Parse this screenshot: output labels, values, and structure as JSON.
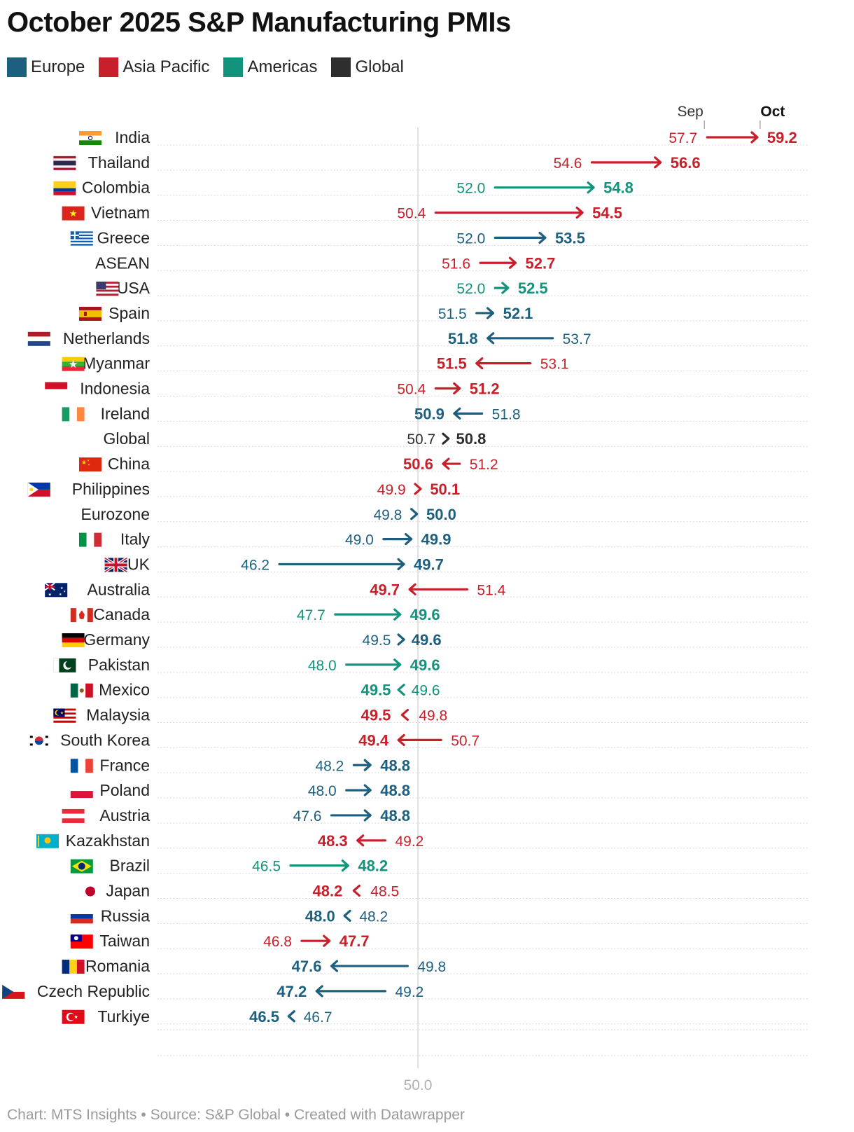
{
  "title": "October 2025 S&P Manufacturing PMIs",
  "footer": "Chart: MTS Insights • Source: S&P Global • Created with Datawrapper",
  "legend": [
    {
      "label": "Europe",
      "color": "#1d5f7e"
    },
    {
      "label": "Asia Pacific",
      "color": "#c8202a"
    },
    {
      "label": "Americas",
      "color": "#13927c"
    },
    {
      "label": "Global",
      "color": "#2e2e2e"
    }
  ],
  "chart_data": {
    "type": "arrow-plot",
    "title": "October 2025 S&P Manufacturing PMIs",
    "start_label": "Sep",
    "end_label": "Oct",
    "reference_line": 50.0,
    "reference_label": "50.0",
    "xlim": [
      43.0,
      60.5
    ],
    "rows": [
      {
        "name": "India",
        "region": "Asia Pacific",
        "flag": "india-flag",
        "sep": 57.7,
        "oct": 59.2,
        "sep_label": "57.7",
        "oct_label": "59.2"
      },
      {
        "name": "Thailand",
        "region": "Asia Pacific",
        "flag": "thailand-flag",
        "sep": 54.6,
        "oct": 56.6,
        "sep_label": "54.6",
        "oct_label": "56.6"
      },
      {
        "name": "Colombia",
        "region": "Americas",
        "flag": "colombia-flag",
        "sep": 52.0,
        "oct": 54.8,
        "sep_label": "52.0",
        "oct_label": "54.8"
      },
      {
        "name": "Vietnam",
        "region": "Asia Pacific",
        "flag": "vietnam-flag",
        "sep": 50.4,
        "oct": 54.5,
        "sep_label": "50.4",
        "oct_label": "54.5"
      },
      {
        "name": "Greece",
        "region": "Europe",
        "flag": "greece-flag",
        "sep": 52.0,
        "oct": 53.5,
        "sep_label": "52.0",
        "oct_label": "53.5"
      },
      {
        "name": "ASEAN",
        "region": "Asia Pacific",
        "flag": "",
        "sep": 51.6,
        "oct": 52.7,
        "sep_label": "51.6",
        "oct_label": "52.7"
      },
      {
        "name": "USA",
        "region": "Americas",
        "flag": "usa-flag",
        "sep": 52.0,
        "oct": 52.5,
        "sep_label": "52.0",
        "oct_label": "52.5"
      },
      {
        "name": "Spain",
        "region": "Europe",
        "flag": "spain-flag",
        "sep": 51.5,
        "oct": 52.1,
        "sep_label": "51.5",
        "oct_label": "52.1"
      },
      {
        "name": "Netherlands",
        "region": "Europe",
        "flag": "netherlands-flag",
        "sep": 53.7,
        "oct": 51.8,
        "sep_label": "53.7",
        "oct_label": "51.8"
      },
      {
        "name": "Myanmar",
        "region": "Asia Pacific",
        "flag": "myanmar-flag",
        "sep": 53.1,
        "oct": 51.5,
        "sep_label": "53.1",
        "oct_label": "51.5"
      },
      {
        "name": "Indonesia",
        "region": "Asia Pacific",
        "flag": "indonesia-flag",
        "sep": 50.4,
        "oct": 51.2,
        "sep_label": "50.4",
        "oct_label": "51.2"
      },
      {
        "name": "Ireland",
        "region": "Europe",
        "flag": "ireland-flag",
        "sep": 51.8,
        "oct": 50.9,
        "sep_label": "51.8",
        "oct_label": "50.9"
      },
      {
        "name": "Global",
        "region": "Global",
        "flag": "",
        "sep": 50.7,
        "oct": 50.8,
        "sep_label": "50.7",
        "oct_label": "50.8"
      },
      {
        "name": "China",
        "region": "Asia Pacific",
        "flag": "china-flag",
        "sep": 51.2,
        "oct": 50.6,
        "sep_label": "51.2",
        "oct_label": "50.6"
      },
      {
        "name": "Philippines",
        "region": "Asia Pacific",
        "flag": "philippines-flag",
        "sep": 49.9,
        "oct": 50.1,
        "sep_label": "49.9",
        "oct_label": "50.1"
      },
      {
        "name": "Eurozone",
        "region": "Europe",
        "flag": "",
        "sep": 49.8,
        "oct": 50.0,
        "sep_label": "49.8",
        "oct_label": "50.0"
      },
      {
        "name": "Italy",
        "region": "Europe",
        "flag": "italy-flag",
        "sep": 49.0,
        "oct": 49.9,
        "sep_label": "49.0",
        "oct_label": "49.9"
      },
      {
        "name": "UK",
        "region": "Europe",
        "flag": "uk-flag",
        "sep": 46.2,
        "oct": 49.7,
        "sep_label": "46.2",
        "oct_label": "49.7"
      },
      {
        "name": "Australia",
        "region": "Asia Pacific",
        "flag": "australia-flag",
        "sep": 51.4,
        "oct": 49.7,
        "sep_label": "51.4",
        "oct_label": "49.7"
      },
      {
        "name": "Canada",
        "region": "Americas",
        "flag": "canada-flag",
        "sep": 47.7,
        "oct": 49.6,
        "sep_label": "47.7",
        "oct_label": "49.6"
      },
      {
        "name": "Germany",
        "region": "Europe",
        "flag": "germany-flag",
        "sep": 49.5,
        "oct": 49.6,
        "sep_label": "49.5",
        "oct_label": "49.6"
      },
      {
        "name": "Pakistan",
        "region": "Americas",
        "flag": "pakistan-flag",
        "sep": 48.0,
        "oct": 49.6,
        "sep_label": "48.0",
        "oct_label": "49.6"
      },
      {
        "name": "Mexico",
        "region": "Americas",
        "flag": "mexico-flag",
        "sep": 49.6,
        "oct": 49.5,
        "sep_label": "49.6",
        "oct_label": "49.5"
      },
      {
        "name": "Malaysia",
        "region": "Asia Pacific",
        "flag": "malaysia-flag",
        "sep": 49.8,
        "oct": 49.5,
        "sep_label": "49.8",
        "oct_label": "49.5"
      },
      {
        "name": "South Korea",
        "region": "Asia Pacific",
        "flag": "south-korea-flag",
        "sep": 50.7,
        "oct": 49.4,
        "sep_label": "50.7",
        "oct_label": "49.4"
      },
      {
        "name": "France",
        "region": "Europe",
        "flag": "france-flag",
        "sep": 48.2,
        "oct": 48.8,
        "sep_label": "48.2",
        "oct_label": "48.8"
      },
      {
        "name": "Poland",
        "region": "Europe",
        "flag": "poland-flag",
        "sep": 48.0,
        "oct": 48.8,
        "sep_label": "48.0",
        "oct_label": "48.8"
      },
      {
        "name": "Austria",
        "region": "Europe",
        "flag": "austria-flag",
        "sep": 47.6,
        "oct": 48.8,
        "sep_label": "47.6",
        "oct_label": "48.8"
      },
      {
        "name": "Kazakhstan",
        "region": "Asia Pacific",
        "flag": "kazakhstan-flag",
        "sep": 49.2,
        "oct": 48.3,
        "sep_label": "49.2",
        "oct_label": "48.3"
      },
      {
        "name": "Brazil",
        "region": "Americas",
        "flag": "brazil-flag",
        "sep": 46.5,
        "oct": 48.2,
        "sep_label": "46.5",
        "oct_label": "48.2"
      },
      {
        "name": "Japan",
        "region": "Asia Pacific",
        "flag": "japan-flag",
        "sep": 48.5,
        "oct": 48.2,
        "sep_label": "48.5",
        "oct_label": "48.2"
      },
      {
        "name": "Russia",
        "region": "Europe",
        "flag": "russia-flag",
        "sep": 48.2,
        "oct": 48.0,
        "sep_label": "48.2",
        "oct_label": "48.0"
      },
      {
        "name": "Taiwan",
        "region": "Asia Pacific",
        "flag": "taiwan-flag",
        "sep": 46.8,
        "oct": 47.7,
        "sep_label": "46.8",
        "oct_label": "47.7"
      },
      {
        "name": "Romania",
        "region": "Europe",
        "flag": "romania-flag",
        "sep": 49.8,
        "oct": 47.6,
        "sep_label": "49.8",
        "oct_label": "47.6"
      },
      {
        "name": "Czech Republic",
        "region": "Europe",
        "flag": "czech-republic-flag",
        "sep": 49.2,
        "oct": 47.2,
        "sep_label": "49.2",
        "oct_label": "47.2"
      },
      {
        "name": "Turkiye",
        "region": "Europe",
        "flag": "turkiye-flag",
        "sep": 46.7,
        "oct": 46.5,
        "sep_label": "46.7",
        "oct_label": "46.5"
      }
    ]
  }
}
